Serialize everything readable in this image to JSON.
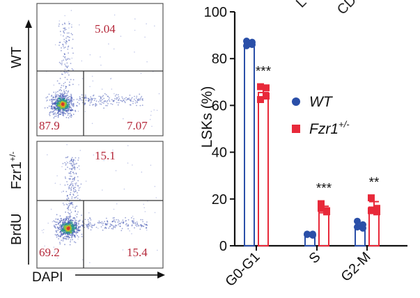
{
  "flow_panels": {
    "x_axis_label": "DAPI",
    "y_axis_label_main": "BrdU",
    "panels": [
      {
        "label": "WT",
        "label_sup": "",
        "gates": {
          "top": "5.04",
          "bottom_left": "87.9",
          "bottom_right": "7.07"
        }
      },
      {
        "label": "Fzr1",
        "label_sup": "+/-",
        "gates": {
          "top": "15.1",
          "bottom_left": "69.2",
          "bottom_right": "15.4"
        }
      }
    ],
    "gate_text_color": "#b5283a"
  },
  "chart_data": {
    "type": "bar",
    "ylabel": "LSKs (%)",
    "xlabel": "",
    "title": "",
    "ylim": [
      0,
      100
    ],
    "yticks": [
      "0",
      "20",
      "40",
      "60",
      "80",
      "100"
    ],
    "categories": [
      "G0-G1",
      "S",
      "G2-M"
    ],
    "series": [
      {
        "name": "WT",
        "name_sup": "",
        "color": "#2a4fa8",
        "marker": "circle",
        "values": [
          86.5,
          4.8,
          8.5
        ],
        "points": [
          [
            87.5,
            86.0,
            85.5,
            87.0
          ],
          [
            5.0,
            4.5,
            4.8,
            5.0
          ],
          [
            10.5,
            7.5,
            8.0,
            9.0
          ]
        ]
      },
      {
        "name": "Fzr1",
        "name_sup": "+/-",
        "color": "#e8293a",
        "marker": "square",
        "values": [
          65.5,
          15.5,
          16.5
        ],
        "points": [
          [
            68.0,
            64.0,
            62.5,
            67.5
          ],
          [
            18.0,
            15.0,
            16.0,
            14.5
          ],
          [
            20.5,
            16.0,
            15.0,
            14.5
          ]
        ]
      }
    ],
    "significance": [
      "***",
      "***",
      "**"
    ],
    "legend_position": "right"
  },
  "top_cut_labels": [
    "L",
    "CD"
  ]
}
